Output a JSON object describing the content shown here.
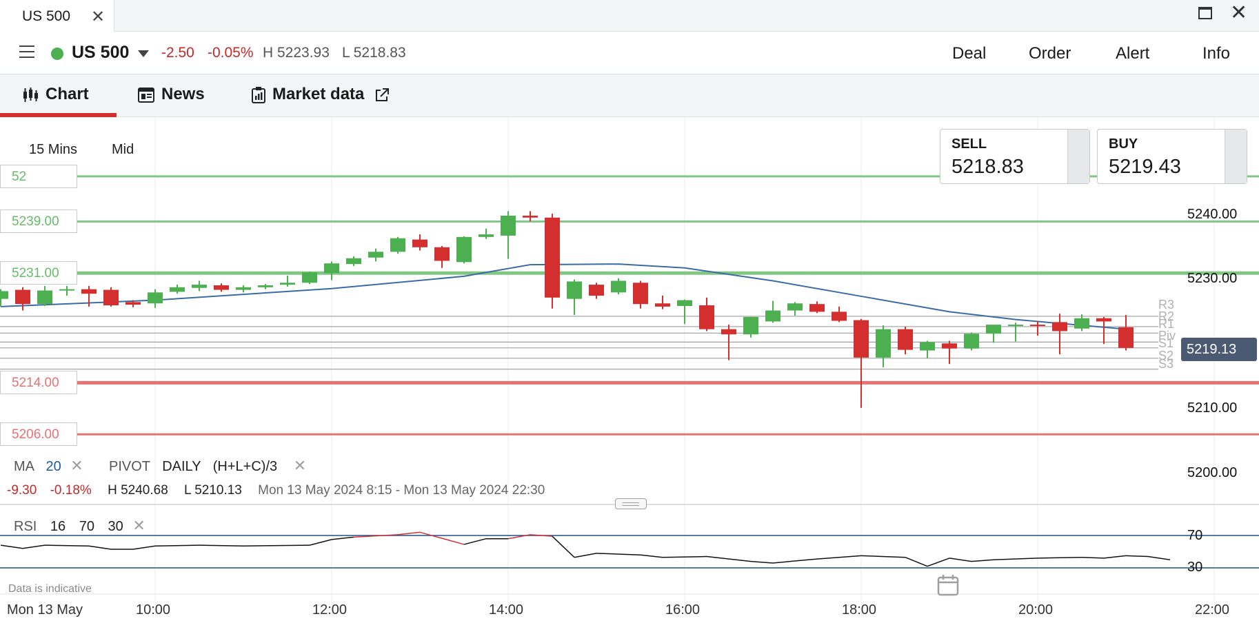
{
  "window": {
    "tab_title": "US 500",
    "tab_close_icon": "close-icon",
    "maximize_icon": "maximize-icon",
    "close_icon": "close-icon"
  },
  "header": {
    "instrument": "US 500",
    "change": "-2.50",
    "change_pct": "-0.05%",
    "high": "H 5223.93",
    "low": "L 5218.83",
    "actions": [
      "Deal",
      "Order",
      "Alert",
      "Info"
    ]
  },
  "tabs": [
    {
      "label": "Chart",
      "icon": "candlestick-icon"
    },
    {
      "label": "News",
      "icon": "news-icon"
    },
    {
      "label": "Market data",
      "icon": "market-data-icon"
    }
  ],
  "chart_toolbar": {
    "timeframe": "15 Mins",
    "price_type": "Mid"
  },
  "quote": {
    "sell_label": "SELL",
    "sell_price": "5218.83",
    "buy_label": "BUY",
    "buy_price": "5219.43"
  },
  "level_boxes": [
    {
      "label": "52",
      "price": 5246,
      "color": "#81c784"
    },
    {
      "label": "5239.00",
      "price": 5239,
      "color": "#81c784"
    },
    {
      "label": "5231.00",
      "price": 5231,
      "color": "#81c784"
    },
    {
      "label": "5214.00",
      "price": 5214,
      "color": "#e57373"
    },
    {
      "label": "5206.00",
      "price": 5206,
      "color": "#e57373"
    }
  ],
  "pivot_labels": [
    "R3",
    "R2",
    "R1",
    "Piv",
    "S1",
    "S2",
    "S3"
  ],
  "current_price": "5219.13",
  "indicators": {
    "ma_label": "MA",
    "ma_period": "20",
    "pivot_label": "PIVOT",
    "pivot_period": "DAILY",
    "pivot_formula": "(H+L+C)/3",
    "close_icon": "close-icon"
  },
  "stats": {
    "change": "-9.30",
    "change_pct": "-0.18%",
    "high": "H 5240.68",
    "low": "L 5210.13",
    "range": "Mon 13 May 2024 8:15 - Mon 13 May 2024 22:30"
  },
  "rsi": {
    "label": "RSI",
    "period": "16",
    "upper": "70",
    "lower": "30"
  },
  "footer": {
    "data_note": "Data is indicative",
    "date": "Mon 13 May",
    "calendar_icon": "calendar-icon"
  },
  "chart_data": {
    "type": "candlestick",
    "interval": "15 Mins",
    "y_ticks": [
      "5240.00",
      "5230.00",
      "5210.00",
      "5200.00"
    ],
    "x_ticks": [
      "10:00",
      "12:00",
      "14:00",
      "16:00",
      "18:00",
      "20:00",
      "22:00"
    ],
    "candles": [
      {
        "t": "8:15",
        "o": 5227.0,
        "h": 5228.5,
        "l": 5225.8,
        "c": 5228.2
      },
      {
        "t": "8:30",
        "o": 5228.4,
        "h": 5228.8,
        "l": 5225.2,
        "c": 5226.2
      },
      {
        "t": "8:45",
        "o": 5226.2,
        "h": 5229.0,
        "l": 5225.9,
        "c": 5228.3
      },
      {
        "t": "9:00",
        "o": 5228.3,
        "h": 5229.0,
        "l": 5227.5,
        "c": 5228.5
      },
      {
        "t": "9:15",
        "o": 5228.5,
        "h": 5229.0,
        "l": 5225.8,
        "c": 5227.8
      },
      {
        "t": "9:30",
        "o": 5228.4,
        "h": 5228.8,
        "l": 5225.8,
        "c": 5226.0
      },
      {
        "t": "9:45",
        "o": 5226.5,
        "h": 5226.8,
        "l": 5225.7,
        "c": 5226.1
      },
      {
        "t": "10:00",
        "o": 5226.3,
        "h": 5228.5,
        "l": 5225.6,
        "c": 5228.0
      },
      {
        "t": "10:15",
        "o": 5228.1,
        "h": 5229.2,
        "l": 5227.8,
        "c": 5228.8
      },
      {
        "t": "10:30",
        "o": 5228.7,
        "h": 5229.8,
        "l": 5228.2,
        "c": 5229.2
      },
      {
        "t": "10:45",
        "o": 5229.1,
        "h": 5229.4,
        "l": 5228.1,
        "c": 5228.4
      },
      {
        "t": "11:00",
        "o": 5228.4,
        "h": 5229.1,
        "l": 5228.0,
        "c": 5228.8
      },
      {
        "t": "11:15",
        "o": 5228.8,
        "h": 5229.3,
        "l": 5228.5,
        "c": 5229.1
      },
      {
        "t": "11:30",
        "o": 5229.2,
        "h": 5230.6,
        "l": 5228.9,
        "c": 5229.5
      },
      {
        "t": "11:45",
        "o": 5229.5,
        "h": 5231.2,
        "l": 5229.3,
        "c": 5231.1
      },
      {
        "t": "12:00",
        "o": 5231.0,
        "h": 5232.8,
        "l": 5229.9,
        "c": 5232.5
      },
      {
        "t": "12:15",
        "o": 5232.4,
        "h": 5233.6,
        "l": 5232.1,
        "c": 5233.3
      },
      {
        "t": "12:30",
        "o": 5233.4,
        "h": 5234.8,
        "l": 5232.8,
        "c": 5234.3
      },
      {
        "t": "12:45",
        "o": 5234.3,
        "h": 5236.6,
        "l": 5234.0,
        "c": 5236.4
      },
      {
        "t": "13:00",
        "o": 5236.2,
        "h": 5237.0,
        "l": 5234.5,
        "c": 5235.0
      },
      {
        "t": "13:15",
        "o": 5235.0,
        "h": 5235.2,
        "l": 5231.8,
        "c": 5232.9
      },
      {
        "t": "13:30",
        "o": 5232.7,
        "h": 5236.7,
        "l": 5232.5,
        "c": 5236.6
      },
      {
        "t": "13:45",
        "o": 5236.6,
        "h": 5237.9,
        "l": 5236.3,
        "c": 5237.0
      },
      {
        "t": "14:00",
        "o": 5236.8,
        "h": 5240.6,
        "l": 5233.2,
        "c": 5239.9
      },
      {
        "t": "14:15",
        "o": 5239.9,
        "h": 5240.6,
        "l": 5239.0,
        "c": 5239.6
      },
      {
        "t": "14:30",
        "o": 5239.6,
        "h": 5240.2,
        "l": 5225.5,
        "c": 5227.2
      },
      {
        "t": "14:45",
        "o": 5227.0,
        "h": 5230.0,
        "l": 5224.5,
        "c": 5229.7
      },
      {
        "t": "15:00",
        "o": 5229.2,
        "h": 5229.5,
        "l": 5227.0,
        "c": 5227.5
      },
      {
        "t": "15:15",
        "o": 5228.0,
        "h": 5230.2,
        "l": 5227.7,
        "c": 5229.8
      },
      {
        "t": "15:30",
        "o": 5229.5,
        "h": 5229.8,
        "l": 5225.5,
        "c": 5226.2
      },
      {
        "t": "15:45",
        "o": 5226.3,
        "h": 5227.5,
        "l": 5225.4,
        "c": 5225.8
      },
      {
        "t": "16:00",
        "o": 5225.9,
        "h": 5226.9,
        "l": 5223.1,
        "c": 5226.8
      },
      {
        "t": "16:15",
        "o": 5226.0,
        "h": 5227.2,
        "l": 5222.0,
        "c": 5222.3
      },
      {
        "t": "16:30",
        "o": 5222.3,
        "h": 5223.0,
        "l": 5217.5,
        "c": 5221.5
      },
      {
        "t": "16:45",
        "o": 5221.5,
        "h": 5224.2,
        "l": 5221.0,
        "c": 5224.2
      },
      {
        "t": "17:00",
        "o": 5223.5,
        "h": 5226.7,
        "l": 5223.3,
        "c": 5225.2
      },
      {
        "t": "17:15",
        "o": 5225.2,
        "h": 5226.5,
        "l": 5224.4,
        "c": 5226.3
      },
      {
        "t": "17:30",
        "o": 5226.2,
        "h": 5226.6,
        "l": 5224.8,
        "c": 5225.0
      },
      {
        "t": "17:45",
        "o": 5225.0,
        "h": 5225.8,
        "l": 5223.4,
        "c": 5223.6
      },
      {
        "t": "18:00",
        "o": 5223.7,
        "h": 5223.9,
        "l": 5210.1,
        "c": 5217.9
      },
      {
        "t": "18:15",
        "o": 5217.9,
        "h": 5222.9,
        "l": 5216.4,
        "c": 5222.3
      },
      {
        "t": "18:30",
        "o": 5222.3,
        "h": 5222.7,
        "l": 5218.4,
        "c": 5219.1
      },
      {
        "t": "18:45",
        "o": 5219.0,
        "h": 5220.5,
        "l": 5217.8,
        "c": 5220.3
      },
      {
        "t": "19:00",
        "o": 5220.1,
        "h": 5220.5,
        "l": 5216.9,
        "c": 5219.3
      },
      {
        "t": "19:15",
        "o": 5219.3,
        "h": 5221.8,
        "l": 5219.0,
        "c": 5221.6
      },
      {
        "t": "19:30",
        "o": 5221.6,
        "h": 5222.8,
        "l": 5220.2,
        "c": 5223.0
      },
      {
        "t": "19:45",
        "o": 5223.0,
        "h": 5223.3,
        "l": 5220.4,
        "c": 5223.0
      },
      {
        "t": "20:00",
        "o": 5223.0,
        "h": 5223.5,
        "l": 5221.3,
        "c": 5222.9
      },
      {
        "t": "20:15",
        "o": 5223.4,
        "h": 5224.7,
        "l": 5218.4,
        "c": 5222.0
      },
      {
        "t": "20:30",
        "o": 5222.4,
        "h": 5224.6,
        "l": 5222.0,
        "c": 5224.0
      },
      {
        "t": "20:45",
        "o": 5224.0,
        "h": 5224.2,
        "l": 5220.0,
        "c": 5223.5
      },
      {
        "t": "21:00",
        "o": 5222.6,
        "h": 5224.5,
        "l": 5219.0,
        "c": 5219.4
      }
    ],
    "ma20": [
      {
        "t": "8:15",
        "v": 5225.8
      },
      {
        "t": "10:00",
        "v": 5226.8
      },
      {
        "t": "12:00",
        "v": 5228.6
      },
      {
        "t": "13:30",
        "v": 5230.5
      },
      {
        "t": "14:15",
        "v": 5232.3
      },
      {
        "t": "15:15",
        "v": 5232.4
      },
      {
        "t": "16:00",
        "v": 5231.8
      },
      {
        "t": "17:00",
        "v": 5229.8
      },
      {
        "t": "18:00",
        "v": 5227.4
      },
      {
        "t": "19:00",
        "v": 5225.0
      },
      {
        "t": "19:45",
        "v": 5223.8
      },
      {
        "t": "21:00",
        "v": 5222.3
      }
    ],
    "pivots": {
      "R3": 5224.3,
      "R2": 5222.7,
      "R1": 5221.7,
      "Piv": 5220.3,
      "S1": 5219.4,
      "S2": 5217.8,
      "S3": 5216.1
    },
    "levels": [
      5246,
      5239,
      5231,
      5214,
      5206
    ],
    "rsi": [
      {
        "t": "8:15",
        "v": 58
      },
      {
        "t": "8:30",
        "v": 54
      },
      {
        "t": "8:45",
        "v": 58
      },
      {
        "t": "9:15",
        "v": 57
      },
      {
        "t": "9:30",
        "v": 53
      },
      {
        "t": "9:45",
        "v": 53
      },
      {
        "t": "10:00",
        "v": 57
      },
      {
        "t": "10:30",
        "v": 58
      },
      {
        "t": "11:00",
        "v": 57
      },
      {
        "t": "11:45",
        "v": 58
      },
      {
        "t": "12:00",
        "v": 65
      },
      {
        "t": "12:15",
        "v": 68
      },
      {
        "t": "12:45",
        "v": 71
      },
      {
        "t": "13:00",
        "v": 74
      },
      {
        "t": "13:30",
        "v": 59
      },
      {
        "t": "13:45",
        "v": 66
      },
      {
        "t": "14:00",
        "v": 66
      },
      {
        "t": "14:15",
        "v": 71
      },
      {
        "t": "14:30",
        "v": 69
      },
      {
        "t": "14:45",
        "v": 43
      },
      {
        "t": "15:00",
        "v": 48
      },
      {
        "t": "15:30",
        "v": 46
      },
      {
        "t": "15:45",
        "v": 43
      },
      {
        "t": "16:15",
        "v": 44
      },
      {
        "t": "16:45",
        "v": 38
      },
      {
        "t": "17:00",
        "v": 36
      },
      {
        "t": "17:30",
        "v": 41
      },
      {
        "t": "18:00",
        "v": 45
      },
      {
        "t": "18:30",
        "v": 43
      },
      {
        "t": "18:45",
        "v": 32
      },
      {
        "t": "19:00",
        "v": 42
      },
      {
        "t": "19:15",
        "v": 38
      },
      {
        "t": "19:30",
        "v": 40
      },
      {
        "t": "20:00",
        "v": 42
      },
      {
        "t": "20:30",
        "v": 43
      },
      {
        "t": "20:45",
        "v": 42
      },
      {
        "t": "21:00",
        "v": 45
      },
      {
        "t": "21:15",
        "v": 44
      },
      {
        "t": "21:30",
        "v": 40
      }
    ]
  }
}
